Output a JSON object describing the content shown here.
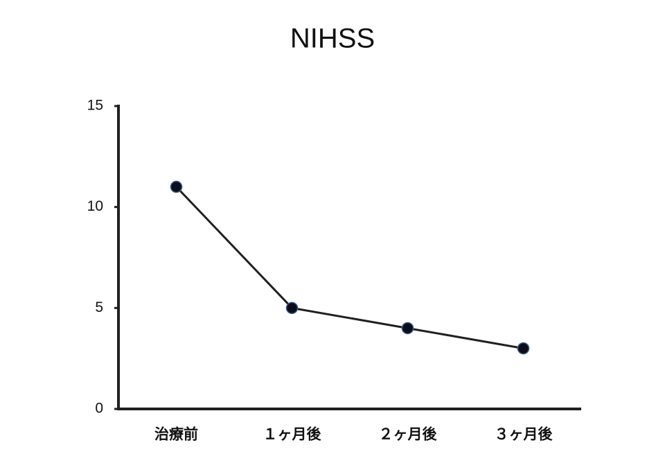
{
  "chart_data": {
    "type": "line",
    "title": "NIHSS",
    "categories": [
      "治療前",
      "１ヶ月後",
      "２ヶ月後",
      "３ヶ月後"
    ],
    "values": [
      11,
      5,
      4,
      3
    ],
    "color": "#231f20",
    "marker_color": "#0d0d1a",
    "marker_edge": "#3a5a8c",
    "ylim": [
      0,
      15
    ],
    "yticks": [
      0,
      5,
      10,
      15
    ],
    "grid": false
  }
}
